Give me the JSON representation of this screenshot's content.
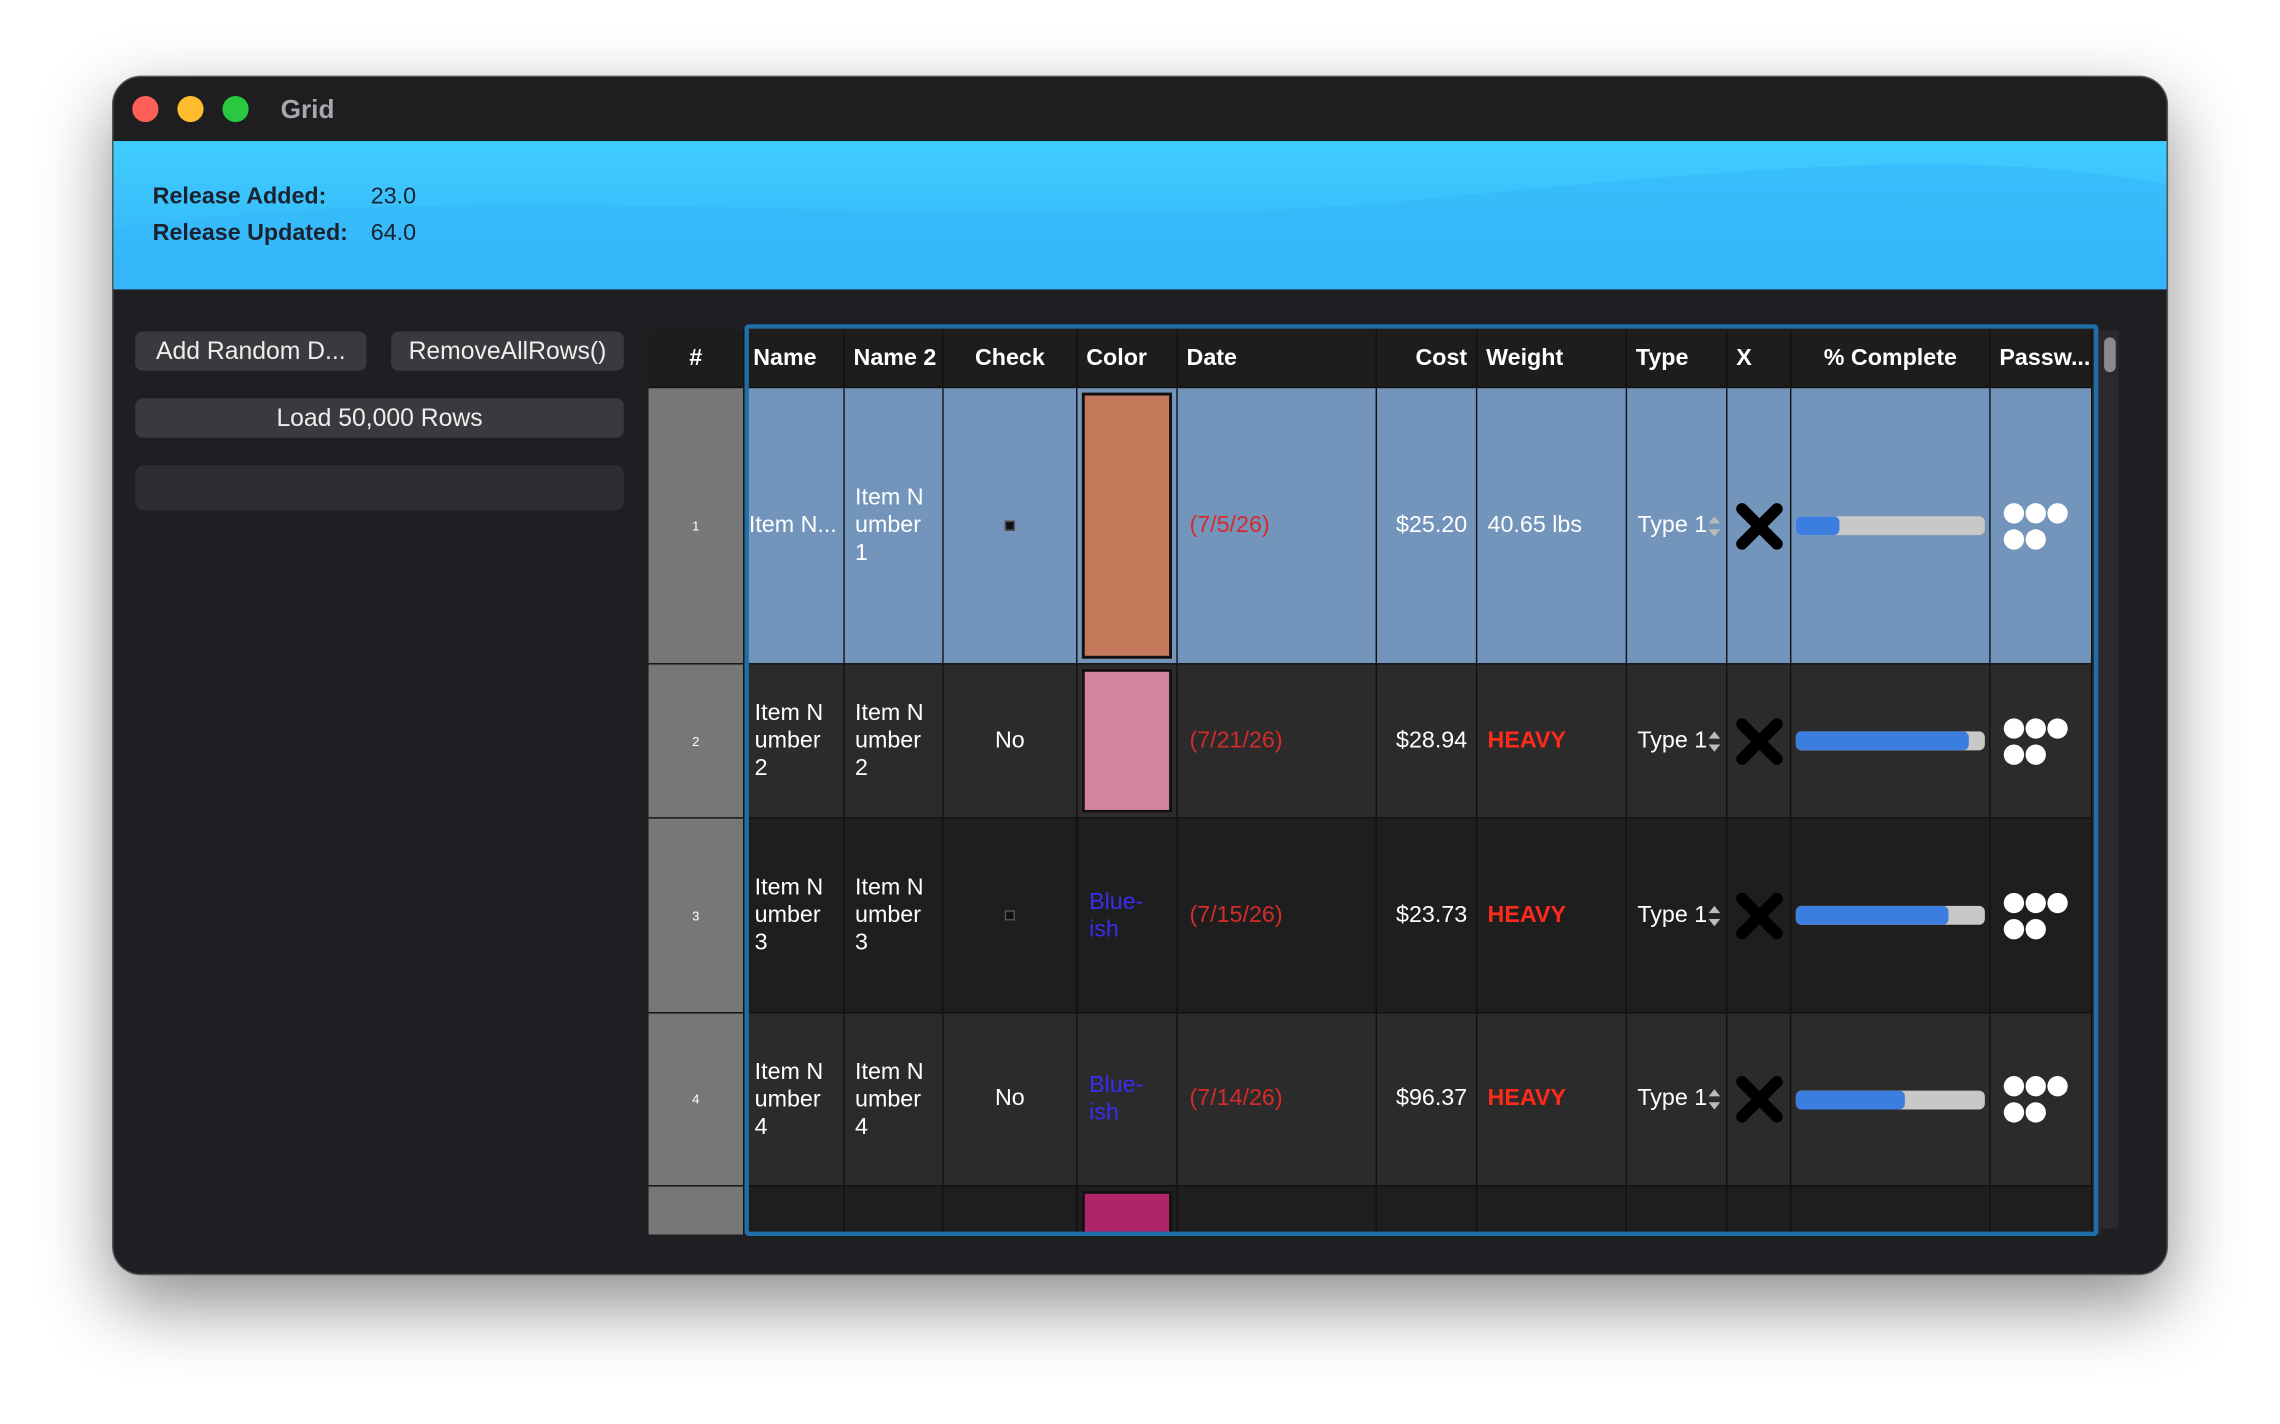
{
  "window": {
    "title": "Grid"
  },
  "header": {
    "fields": [
      {
        "label": "Release Added:",
        "value": "23.0"
      },
      {
        "label": "Release Updated:",
        "value": "64.0"
      }
    ]
  },
  "buttons": [
    "Add Random D...",
    "RemoveAllRows()",
    "Load 50,000 Rows"
  ],
  "table": {
    "columns": [
      "#",
      "Name",
      "Name 2",
      "Check",
      "Color",
      "Date",
      "Cost",
      "Weight",
      "Type",
      "X",
      "% Complete",
      "Passw..."
    ],
    "rows": [
      {
        "num": "1",
        "name": "Item N...",
        "name2": "Item Number 1",
        "swatch": "#c47a5a",
        "date": "(7/5/26)",
        "cost": "$25.20",
        "weight": "40.65 lbs",
        "type": "Type 1",
        "complete": 23
      },
      {
        "num": "2",
        "name": "Item Number 2",
        "name2": "Item Number 2",
        "check": "No",
        "swatch": "#d4849e",
        "date": "(7/21/26)",
        "cost": "$28.94",
        "weight": "HEAVY",
        "type": "Type 1",
        "complete": 91
      },
      {
        "num": "3",
        "name": "Item Number 3",
        "name2": "Item Number 3",
        "color_label": "Blue-ish",
        "date": "(7/15/26)",
        "cost": "$23.73",
        "weight": "HEAVY",
        "type": "Type 1",
        "complete": 80
      },
      {
        "num": "4",
        "name": "Item Number 4",
        "name2": "Item Number 4",
        "check": "No",
        "color_label": "Blue-ish",
        "date": "(7/14/26)",
        "cost": "$96.37",
        "weight": "HEAVY",
        "type": "Type 1",
        "complete": 57
      },
      {
        "swatch": "#b0256a"
      }
    ]
  }
}
